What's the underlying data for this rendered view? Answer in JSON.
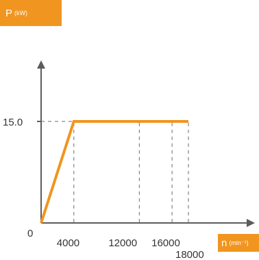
{
  "colors": {
    "accent": "#f0951f",
    "axis": "#5c5c5c",
    "guide": "#6b6b6b",
    "text": "#333333"
  },
  "y_label": {
    "symbol": "P",
    "unit": "(kW)"
  },
  "x_label": {
    "symbol": "n",
    "unit": "(min⁻¹)"
  },
  "chart_data": {
    "type": "line",
    "title": "",
    "xlabel": "n (min⁻¹)",
    "ylabel": "P (kW)",
    "xlim": [
      0,
      18000
    ],
    "ylim": [
      0,
      15.0
    ],
    "grid": false,
    "x_ticks": [
      {
        "value": 4000,
        "label": "4000"
      },
      {
        "value": 12000,
        "label": "12000"
      },
      {
        "value": 16000,
        "label": "16000"
      },
      {
        "value": 18000,
        "label": "18000"
      }
    ],
    "y_ticks": [
      {
        "value": 0,
        "label": "0"
      },
      {
        "value": 15.0,
        "label": "15.0"
      }
    ],
    "series": [
      {
        "x": [
          0,
          4000,
          12000,
          16000,
          18000
        ],
        "y": [
          0,
          15.0,
          15.0,
          15.0,
          15.0
        ]
      }
    ]
  }
}
